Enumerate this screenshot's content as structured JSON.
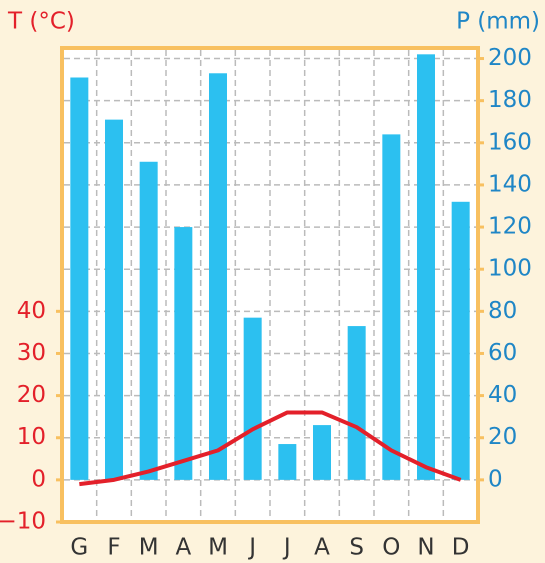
{
  "chart_data": {
    "type": "climograph",
    "y_label": "T (°C)",
    "y2_label": "P (mm)",
    "categories": [
      "G",
      "F",
      "M",
      "A",
      "M",
      "J",
      "J",
      "A",
      "S",
      "O",
      "N",
      "D"
    ],
    "ylim": [
      -10,
      102.5
    ],
    "yticks": [
      {
        "value": -10,
        "label": "−10"
      },
      0,
      10,
      20,
      30,
      40
    ],
    "y2lim": [
      -20,
      205
    ],
    "y2ticks": [
      0,
      20,
      40,
      60,
      80,
      100,
      120,
      140,
      160,
      180,
      200
    ],
    "grid": true,
    "series": [
      {
        "name": "P",
        "type": "bar",
        "axis": "y2",
        "color": "#2cc0f0",
        "values": [
          191,
          171,
          151,
          120,
          193,
          77,
          17,
          26,
          73,
          164,
          202,
          132
        ]
      },
      {
        "name": "T",
        "type": "line",
        "axis": "y",
        "color": "#e3202a",
        "values": [
          -1,
          0,
          2,
          4.5,
          7,
          12,
          16,
          16,
          12.5,
          7,
          3,
          0
        ]
      }
    ]
  }
}
